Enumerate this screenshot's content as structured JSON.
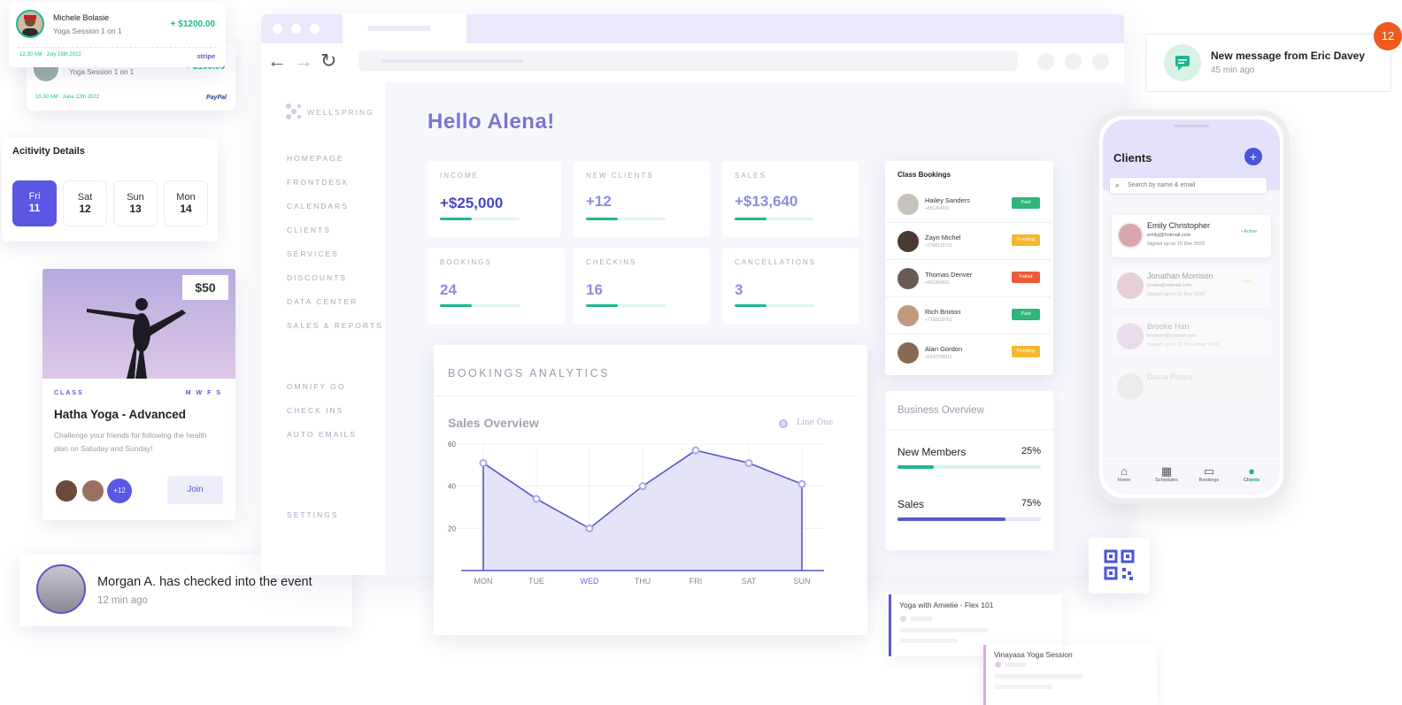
{
  "payments": [
    {
      "name": "Michele Bolasie",
      "session": "Yoga Session 1 on 1",
      "amount": "+ $1200.00",
      "date": "12.30 AM · July 15th 2022",
      "provider": "stripe"
    },
    {
      "name": "",
      "session": "Yoga Session 1 on 1",
      "amount": "+ $150.00",
      "date": "10.30 AM · June 12th 2022",
      "provider": "PayPal"
    }
  ],
  "activity": {
    "title": "Acitivity Details",
    "days": [
      {
        "day": "Fri",
        "num": "11"
      },
      {
        "day": "Sat",
        "num": "12"
      },
      {
        "day": "Sun",
        "num": "13"
      },
      {
        "day": "Mon",
        "num": "14"
      }
    ]
  },
  "class_card": {
    "price": "$50",
    "label": "CLASS",
    "days": "M W F S",
    "title": "Hatha Yoga - Advanced",
    "desc": "Challenge your friends for following the health plan on Satuday and Sunday!",
    "more": "+12",
    "join": "Join"
  },
  "checkin": {
    "text": "Morgan A. has checked into the event",
    "time": "12 min ago"
  },
  "browser": {
    "back": "←",
    "forward": "→",
    "reload": "↻"
  },
  "sidebar": {
    "logo": "WELLSPRING",
    "items": [
      "HOMEPAGE",
      "FRONTDESK",
      "CALENDARS",
      "CLIENTS",
      "SERVICES",
      "DISCOUNTS",
      "DATA CENTER",
      "SALES & REPORTS"
    ],
    "items2": [
      "OMNIFY GO",
      "CHECK INS",
      "AUTO EMAILS"
    ],
    "settings": "SETTINGS"
  },
  "greeting": "Hello Alena!",
  "stats": [
    {
      "label": "INCOME",
      "value": "+$25,000",
      "progress": 0.4
    },
    {
      "label": "NEW CLIENTS",
      "value": "+12",
      "progress": 0.4
    },
    {
      "label": "SALES",
      "value": "+$13,640",
      "progress": 0.4
    },
    {
      "label": "BOOKINGS",
      "value": "24",
      "progress": 0.4
    },
    {
      "label": "CHECKINS",
      "value": "16",
      "progress": 0.4
    },
    {
      "label": "CANCELLATIONS",
      "value": "3",
      "progress": 0.4
    }
  ],
  "analytics": {
    "title": "BOOKINGS ANALYTICS",
    "subtitle": "Sales Overview",
    "legend": "Line One"
  },
  "chart_data": {
    "type": "area",
    "title": "Sales Overview",
    "categories": [
      "MON",
      "TUE",
      "WED",
      "THU",
      "FRI",
      "SAT",
      "SUN"
    ],
    "highlight": "WED",
    "series": [
      {
        "name": "Line One",
        "values": [
          51,
          34,
          20,
          40,
          57,
          51,
          41
        ]
      }
    ],
    "yticks": [
      20,
      40,
      60
    ],
    "ylim": [
      0,
      60
    ],
    "grid": true,
    "legend_position": "top-right",
    "color": "#5a57c9"
  },
  "bookings": {
    "title": "Class Bookings",
    "rows": [
      {
        "name": "Hailey Sanders",
        "phone": "+881204591",
        "status": "Paid",
        "color": "#2fb57a"
      },
      {
        "name": "Zayn Michel",
        "phone": "+7768129751",
        "status": "Pending",
        "color": "#f5b72f"
      },
      {
        "name": "Thomas Denver",
        "phone": "+881204591",
        "status": "Failed",
        "color": "#ee5b3a"
      },
      {
        "name": "Rich Brixton",
        "phone": "+7768129751",
        "status": "Paid",
        "color": "#2fb57a"
      },
      {
        "name": "Alan Gordon",
        "phone": "+0930786811",
        "status": "Pending",
        "color": "#f5b72f"
      }
    ]
  },
  "business": {
    "title": "Business Overview",
    "rows": [
      {
        "label": "New Members",
        "value": "25%",
        "progress": 0.25,
        "color": "#1cb890"
      },
      {
        "label": "Sales",
        "value": "75%",
        "progress": 0.75,
        "color": "#5a57c9"
      }
    ]
  },
  "message": {
    "text": "New message from Eric Davey",
    "time": "45 min ago",
    "badge": "12"
  },
  "phone": {
    "title": "Clients",
    "search": "Search by name & email",
    "clients": [
      {
        "name": "Emily Christopher",
        "email": "emilyj@hotmail.com",
        "signed": "Signed up on 15 Dec 2020",
        "status": "• Active"
      },
      {
        "name": "Jonathan Morrison",
        "email": "jonam@hotmail.com",
        "signed": "Signed up on 01 Nov 2020",
        "status": "• Info"
      },
      {
        "name": "Brooke Han",
        "email": "brookeh@hotmail.com",
        "signed": "Signed up on 15 December 2020",
        "status": ""
      },
      {
        "name": "Diana Prince",
        "email": "",
        "signed": "",
        "status": ""
      }
    ],
    "tabs": [
      "Home",
      "Schedules",
      "Bookings",
      "Clients"
    ]
  },
  "sessions": [
    {
      "title": "Yoga with Amielie - Flex 101"
    },
    {
      "title": "Vinayasa Yoga Session"
    }
  ]
}
